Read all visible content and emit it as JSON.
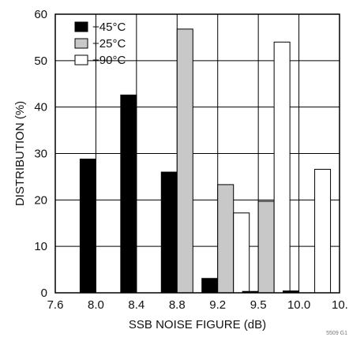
{
  "chart_data": {
    "type": "bar",
    "xlabel": "SSB NOISE FIGURE (dB)",
    "ylabel": "DISTRIBUTION (%)",
    "ylim": [
      0,
      60
    ],
    "yticks": [
      "0",
      "10",
      "20",
      "30",
      "40",
      "50",
      "60"
    ],
    "xticks": [
      "7.6",
      "8.0",
      "8.4",
      "8.8",
      "9.2",
      "9.5",
      "10.0",
      "10."
    ],
    "categories": [
      "8.0",
      "8.4",
      "8.8",
      "9.2",
      "9.5",
      "10.0"
    ],
    "series": [
      {
        "name": "−45°C",
        "color": "#000000",
        "values": [
          28.8,
          42.6,
          26.0,
          3.1,
          0.3,
          0.4
        ]
      },
      {
        "name": "+25°C",
        "color": "#c8c8c8",
        "values": [
          0,
          0,
          56.8,
          23.3,
          19.7,
          0
        ]
      },
      {
        "name": "+90°C",
        "color": "#ffffff",
        "values": [
          0,
          0,
          0,
          17.2,
          54.0,
          26.6
        ]
      }
    ],
    "grid": true,
    "legend": "top-left",
    "corner_note": "5509 G1"
  }
}
